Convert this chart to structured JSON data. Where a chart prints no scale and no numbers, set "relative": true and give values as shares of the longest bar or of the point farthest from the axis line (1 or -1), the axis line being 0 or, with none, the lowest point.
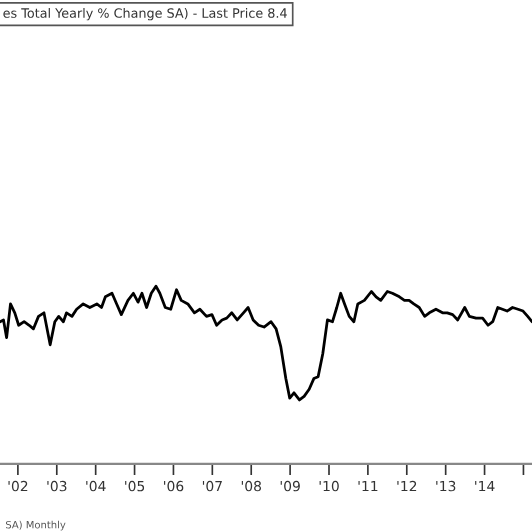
{
  "chart_data": {
    "type": "line",
    "relative": true,
    "title": "es Total Yearly % Change SA) - Last Price 8.4",
    "annotations": [
      "SA) Monthly"
    ],
    "xlim": [
      2001.54,
      2015.22
    ],
    "xticks": [
      {
        "value": 2002,
        "label": "'02"
      },
      {
        "value": 2003,
        "label": "'03"
      },
      {
        "value": 2004,
        "label": "'04"
      },
      {
        "value": 2005,
        "label": "'05"
      },
      {
        "value": 2006,
        "label": "'06"
      },
      {
        "value": 2007,
        "label": "'07"
      },
      {
        "value": 2008,
        "label": "'08"
      },
      {
        "value": 2009,
        "label": "'09"
      },
      {
        "value": 2010,
        "label": "'10"
      },
      {
        "value": 2011,
        "label": "'11"
      },
      {
        "value": 2012,
        "label": "'12"
      },
      {
        "value": 2013,
        "label": "'13"
      },
      {
        "value": 2014,
        "label": "'14"
      },
      {
        "value": 2015,
        "label": null
      }
    ],
    "tick_labels": "x",
    "series": [
      {
        "color": "#000000",
        "x": [
          2001.54,
          2001.63,
          2001.71,
          2001.81,
          2001.92,
          2002.02,
          2002.16,
          2002.29,
          2002.4,
          2002.53,
          2002.67,
          2002.83,
          2002.95,
          2003.05,
          2003.17,
          2003.25,
          2003.39,
          2003.51,
          2003.68,
          2003.85,
          2004.03,
          2004.15,
          2004.25,
          2004.42,
          2004.54,
          2004.66,
          2004.83,
          2004.97,
          2005.09,
          2005.19,
          2005.31,
          2005.43,
          2005.55,
          2005.65,
          2005.79,
          2005.93,
          2006.08,
          2006.2,
          2006.37,
          2006.54,
          2006.68,
          2006.85,
          2006.99,
          2007.11,
          2007.25,
          2007.37,
          2007.5,
          2007.64,
          2007.8,
          2007.92,
          2008.05,
          2008.19,
          2008.33,
          2008.51,
          2008.64,
          2008.76,
          2008.89,
          2008.99,
          2009.1,
          2009.24,
          2009.36,
          2009.49,
          2009.61,
          2009.72,
          2009.84,
          2009.96,
          2010.09,
          2010.2,
          2010.3,
          2010.4,
          2010.52,
          2010.64,
          2010.74,
          2010.91,
          2011.09,
          2011.21,
          2011.33,
          2011.5,
          2011.63,
          2011.81,
          2011.94,
          2012.06,
          2012.18,
          2012.32,
          2012.46,
          2012.58,
          2012.75,
          2012.92,
          2013.04,
          2013.18,
          2013.31,
          2013.49,
          2013.61,
          2013.78,
          2013.95,
          2014.09,
          2014.21,
          2014.34,
          2014.46,
          2014.58,
          2014.72,
          2014.86,
          2014.99,
          2015.11,
          2015.22
        ],
        "values": [
          0.8,
          0.81,
          0.71,
          0.9,
          0.85,
          0.78,
          0.8,
          0.78,
          0.76,
          0.83,
          0.85,
          0.67,
          0.8,
          0.83,
          0.8,
          0.85,
          0.83,
          0.87,
          0.9,
          0.88,
          0.9,
          0.88,
          0.94,
          0.96,
          0.9,
          0.84,
          0.92,
          0.96,
          0.91,
          0.96,
          0.88,
          0.96,
          1.0,
          0.96,
          0.88,
          0.87,
          0.98,
          0.92,
          0.9,
          0.85,
          0.87,
          0.83,
          0.84,
          0.78,
          0.81,
          0.82,
          0.85,
          0.81,
          0.85,
          0.88,
          0.81,
          0.78,
          0.77,
          0.8,
          0.76,
          0.66,
          0.48,
          0.37,
          0.4,
          0.36,
          0.38,
          0.42,
          0.48,
          0.49,
          0.62,
          0.81,
          0.8,
          0.88,
          0.96,
          0.9,
          0.83,
          0.8,
          0.9,
          0.92,
          0.97,
          0.94,
          0.92,
          0.97,
          0.96,
          0.94,
          0.92,
          0.92,
          0.9,
          0.88,
          0.83,
          0.85,
          0.87,
          0.85,
          0.85,
          0.84,
          0.81,
          0.88,
          0.83,
          0.82,
          0.82,
          0.78,
          0.8,
          0.88,
          0.87,
          0.86,
          0.88,
          0.87,
          0.86,
          0.83,
          0.8
        ]
      }
    ]
  }
}
